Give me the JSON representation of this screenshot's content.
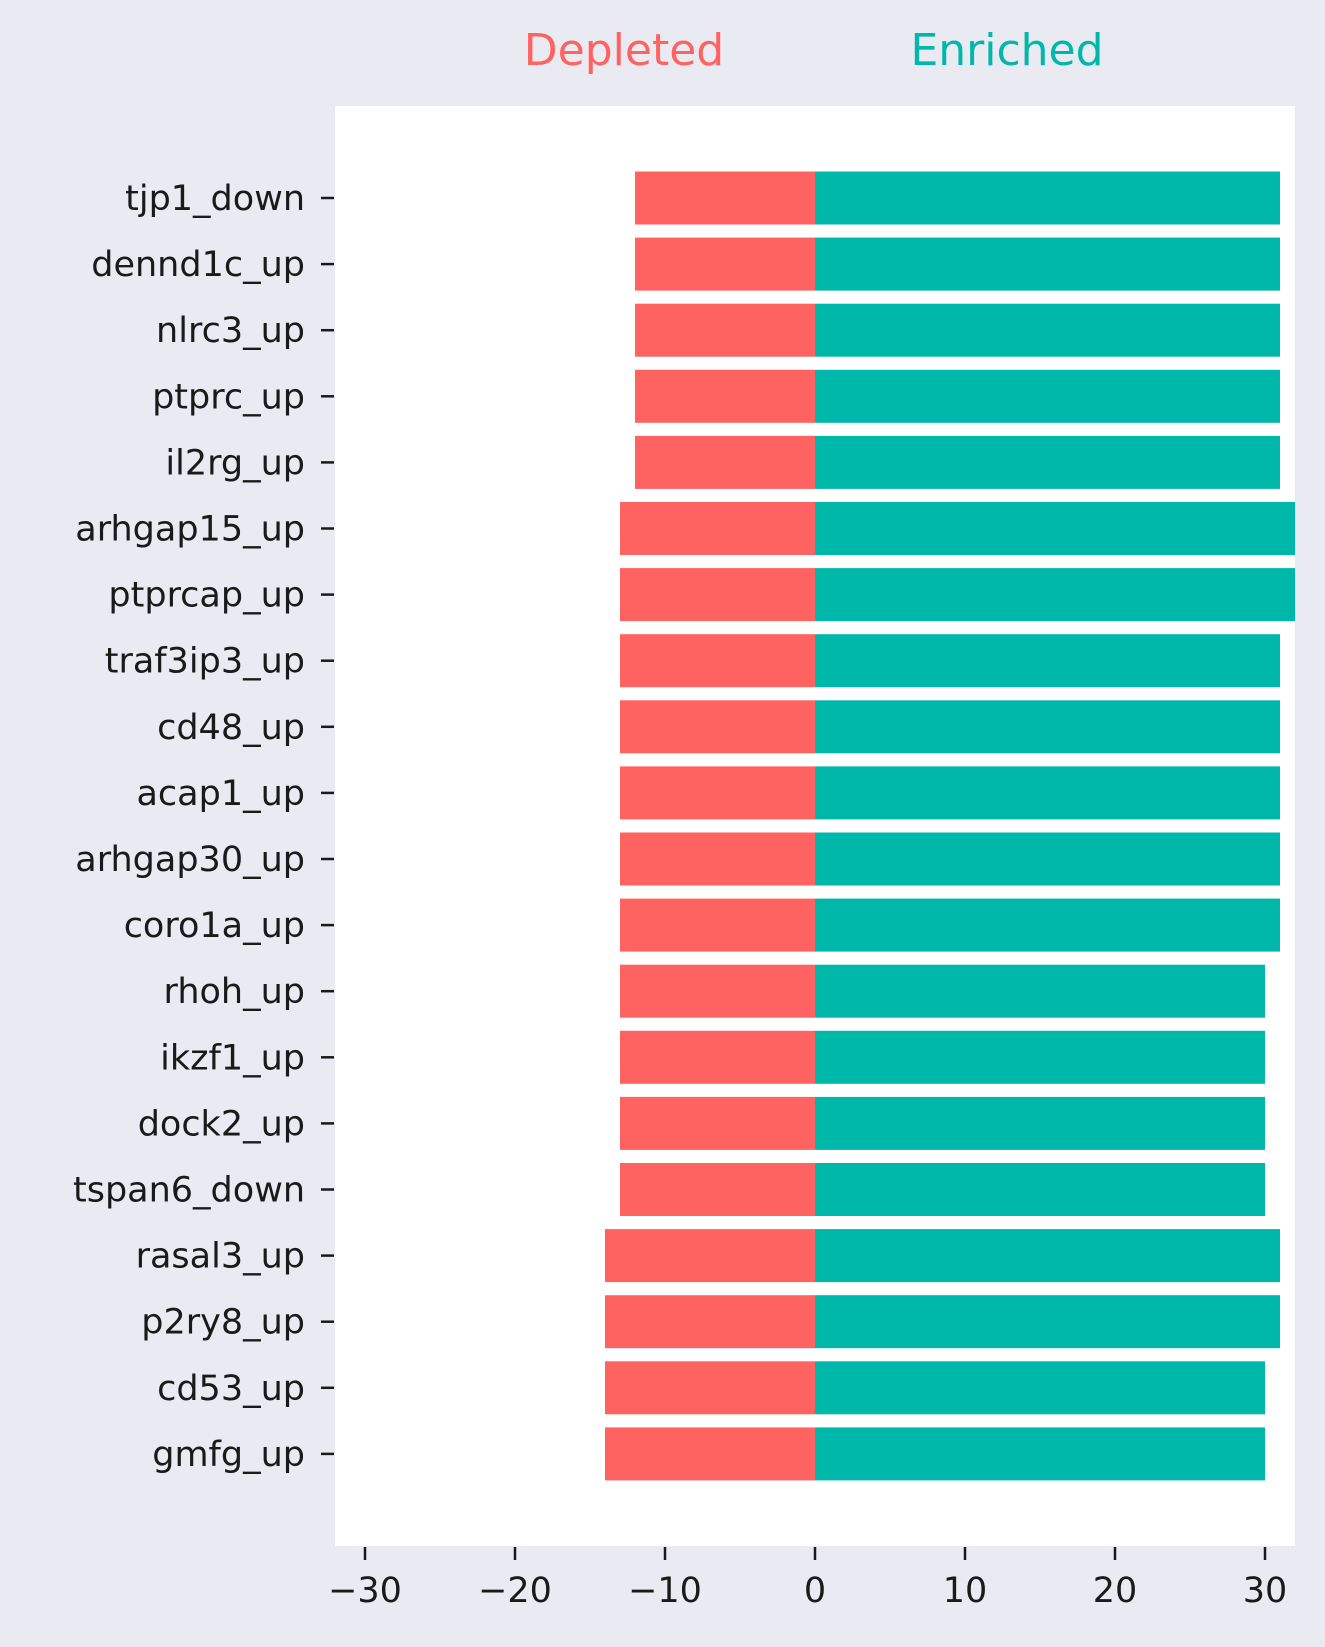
{
  "chart_data": {
    "type": "bar",
    "orientation": "horizontal",
    "stacked": "diverging",
    "categories": [
      "tjp1_down",
      "dennd1c_up",
      "nlrc3_up",
      "ptprc_up",
      "il2rg_up",
      "arhgap15_up",
      "ptprcap_up",
      "traf3ip3_up",
      "cd48_up",
      "acap1_up",
      "arhgap30_up",
      "coro1a_up",
      "rhoh_up",
      "ikzf1_up",
      "dock2_up",
      "tspan6_down",
      "rasal3_up",
      "p2ry8_up",
      "cd53_up",
      "gmfg_up"
    ],
    "series": [
      {
        "name": "Depleted",
        "color": "#ff6361",
        "values": [
          -12,
          -12,
          -12,
          -12,
          -12,
          -13,
          -13,
          -13,
          -13,
          -13,
          -13,
          -13,
          -13,
          -13,
          -13,
          -13,
          -14,
          -14,
          -14,
          -14
        ]
      },
      {
        "name": "Enriched",
        "color": "#00b8aa",
        "values": [
          31,
          31,
          31,
          31,
          31,
          32,
          32,
          31,
          31,
          31,
          31,
          31,
          30,
          30,
          30,
          30,
          31,
          31,
          30,
          30
        ]
      }
    ],
    "xlim": [
      -32,
      32
    ],
    "xticks": [
      -30,
      -20,
      -10,
      0,
      10,
      20,
      30
    ],
    "xtick_labels": [
      "−30",
      "−20",
      "−10",
      "0",
      "10",
      "20",
      "30"
    ],
    "grid": false,
    "legend": "top"
  },
  "colors": {
    "figure_background": "#eaeaf2",
    "plot_background": "#ffffff",
    "depleted": "#ff6361",
    "enriched": "#00b8aa",
    "text": "#1a1a1a"
  }
}
